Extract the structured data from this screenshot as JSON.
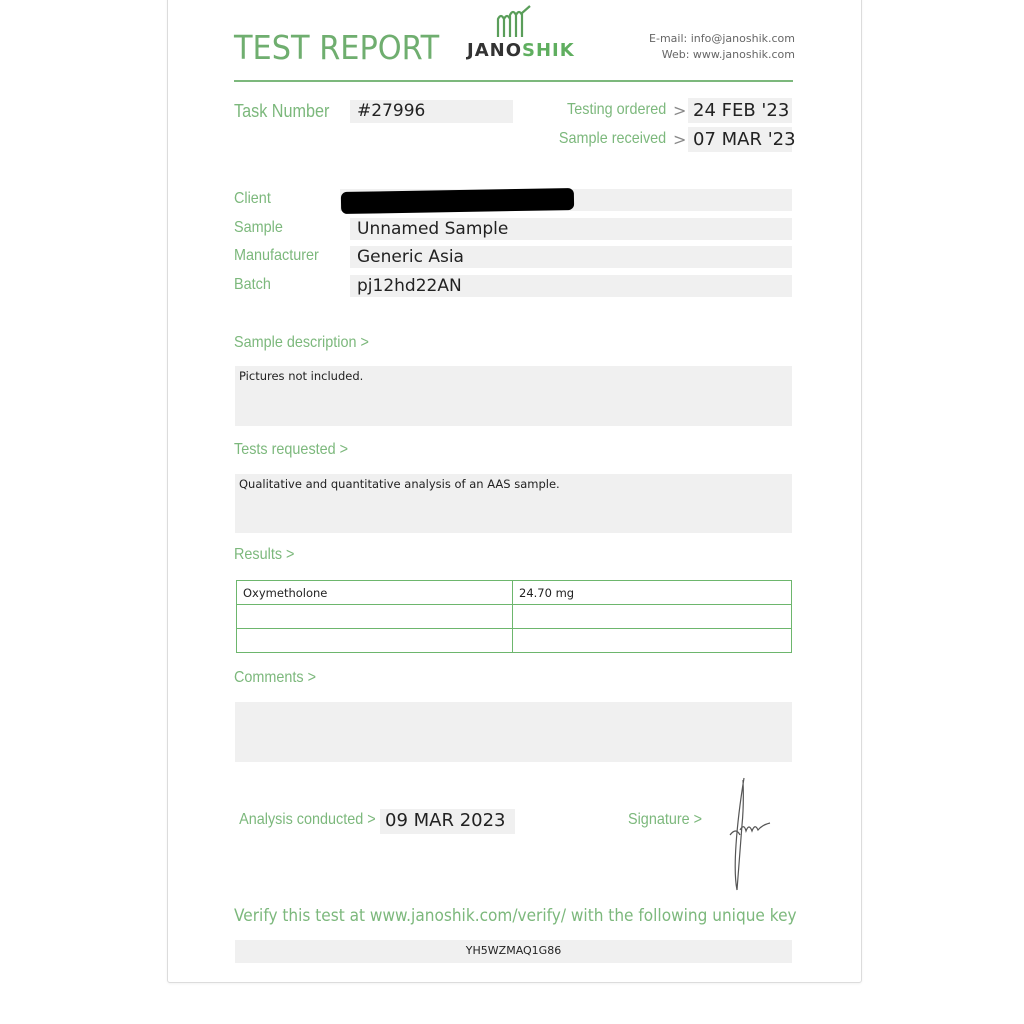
{
  "header": {
    "title": "TEST REPORT",
    "logo": {
      "text_dark": "JANO",
      "text_green": "SHIK"
    },
    "email": "E-mail: info@janoshik.com",
    "web": "Web: www.janoshik.com"
  },
  "task": {
    "label": "Task Number",
    "value": "#27996"
  },
  "dates": {
    "ordered_label": "Testing ordered",
    "ordered_value": "24 FEB '23",
    "received_label": "Sample received",
    "received_value": "07 MAR '23",
    "arrow": ">"
  },
  "info": {
    "client_label": "Client",
    "client_value": "",
    "sample_label": "Sample",
    "sample_value": "Unnamed Sample",
    "manufacturer_label": "Manufacturer",
    "manufacturer_value": "Generic Asia",
    "batch_label": "Batch",
    "batch_value": "pj12hd22AN"
  },
  "sample_description": {
    "label": "Sample description >",
    "text": "Pictures not included."
  },
  "tests_requested": {
    "label": "Tests requested >",
    "text": "Qualitative and quantitative analysis of an AAS sample."
  },
  "results": {
    "label": "Results >",
    "rows": [
      [
        "Oxymetholone",
        "24.70 mg"
      ],
      [
        "",
        ""
      ],
      [
        "",
        ""
      ]
    ]
  },
  "comments": {
    "label": "Comments >",
    "text": ""
  },
  "analysis": {
    "label": "Analysis conducted >",
    "value": "09 MAR 2023"
  },
  "signature": {
    "label": "Signature >"
  },
  "verify": {
    "text": "Verify this test at www.janoshik.com/verify/ with the following unique key",
    "key": "YH5WZMAQ1G86"
  },
  "colors": {
    "accent": "#7cb87c",
    "table_border": "#6db66d",
    "field_bg": "#f0f0f0"
  }
}
